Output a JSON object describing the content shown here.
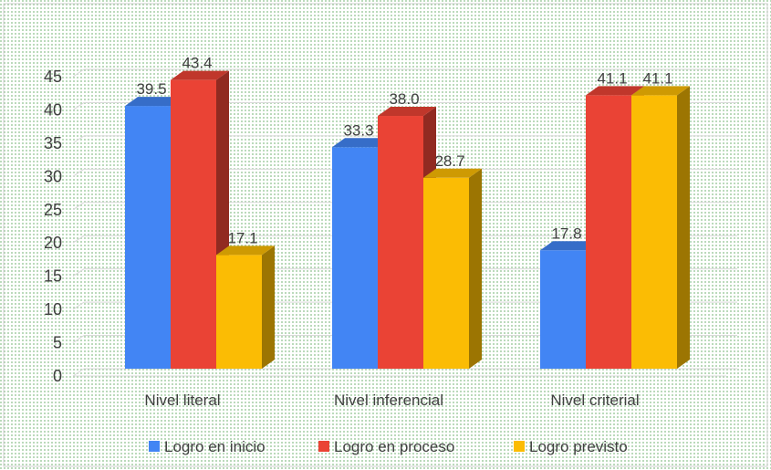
{
  "chart_data": {
    "type": "bar",
    "style": "3d-clustered-column",
    "categories": [
      "Nivel literal",
      "Nivel inferencial",
      "Nivel criterial"
    ],
    "series": [
      {
        "name": "Logro en inicio",
        "color": "#4285f4",
        "values": [
          39.5,
          33.3,
          17.8
        ]
      },
      {
        "name": "Logro en proceso",
        "color": "#ea4335",
        "values": [
          43.4,
          38.0,
          41.1
        ]
      },
      {
        "name": "Logro previsto",
        "color": "#fbbc04",
        "values": [
          17.1,
          28.7,
          41.1
        ]
      }
    ],
    "value_labels": [
      [
        "39.5",
        "33.3",
        "17.8"
      ],
      [
        "43.4",
        "38.0",
        "41.1"
      ],
      [
        "17.1",
        "28.7",
        "41.1"
      ]
    ],
    "y_ticks": [
      "0",
      "5",
      "10",
      "15",
      "20",
      "25",
      "30",
      "35",
      "40",
      "45"
    ],
    "ylim": [
      0,
      45
    ],
    "grid": true,
    "legend_position": "bottom",
    "background": "dotted-green"
  }
}
